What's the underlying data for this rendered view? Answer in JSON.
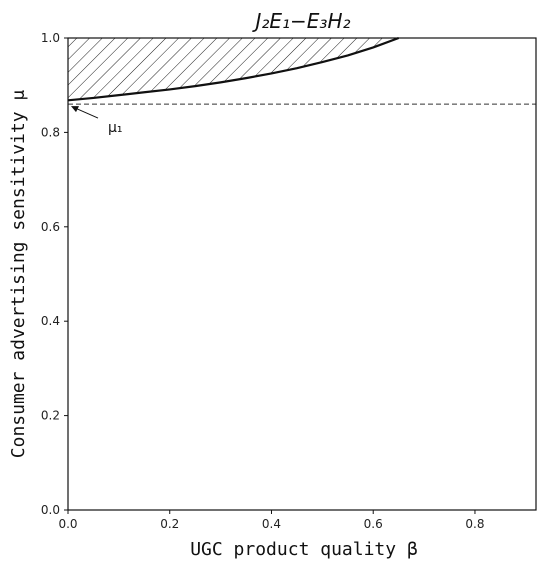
{
  "chart_data": {
    "type": "area",
    "title": "J₂E₁−E₃H₂",
    "xlabel": "UGC product quality β",
    "ylabel": "Consumer advertising sensitivity μ",
    "xlim": [
      0,
      0.92
    ],
    "ylim": [
      0,
      1.0
    ],
    "x_ticks": [
      0.0,
      0.2,
      0.4,
      0.6,
      0.8
    ],
    "x_tick_labels": [
      "0.0",
      "0.2",
      "0.4",
      "0.6",
      "0.8"
    ],
    "y_ticks": [
      0.0,
      0.2,
      0.4,
      0.6,
      0.8,
      1.0
    ],
    "y_tick_labels": [
      "0.0",
      "0.2",
      "0.4",
      "0.6",
      "0.8",
      "1.0"
    ],
    "grid": false,
    "boundary_curve": {
      "x": [
        0.0,
        0.05,
        0.1,
        0.15,
        0.2,
        0.25,
        0.3,
        0.35,
        0.4,
        0.45,
        0.5,
        0.55,
        0.6,
        0.65
      ],
      "y": [
        0.868,
        0.873,
        0.879,
        0.885,
        0.891,
        0.898,
        0.906,
        0.915,
        0.925,
        0.936,
        0.949,
        0.963,
        0.98,
        1.0
      ]
    },
    "shaded_region": "between boundary curve and μ = 1.0 (hatched)",
    "reference_line": {
      "y": 0.86,
      "style": "dashed"
    },
    "annotations": [
      {
        "text": "μ₁",
        "point": [
          0.0,
          0.86
        ]
      }
    ]
  },
  "colors": {
    "line": "#111111",
    "hatch": "#222222",
    "background": "#ffffff"
  }
}
